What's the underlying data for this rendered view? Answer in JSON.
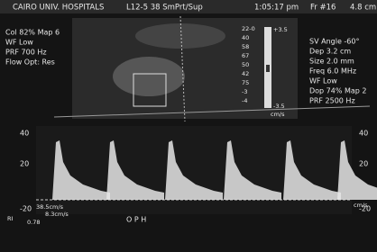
{
  "header": {
    "site": "CAIRO UNIV. HOSPITALS",
    "probe": "L12-5 38 SmPrt/Sup",
    "time": "1:05:17 pm",
    "frame": "Fr #16",
    "depth": "4.8 cm"
  },
  "color_settings": [
    "Col 82%  Map 6",
    "WF Low",
    "PRF 700   Hz",
    "Flow Opt: Res"
  ],
  "color_bar": {
    "top": "+3.5",
    "bottom": "-3.5",
    "unit": "cm/s",
    "scale": [
      "22-0",
      "40",
      "58",
      "67",
      "50",
      "42",
      "75",
      "-3",
      "-4"
    ]
  },
  "doppler_settings": [
    "SV Angle -60°",
    "Dep 3.2  cm",
    "Size 2.0  mm",
    "Freq 6.0  MHz",
    "WF Low",
    "Dop 74%  Map 2",
    "PRF 2500  Hz"
  ],
  "spectrum": {
    "left_ticks": [
      "40",
      "20",
      "-20"
    ],
    "right_ticks": [
      "40",
      "20",
      "-20"
    ],
    "unit": "cm/s",
    "vessel": "O P H"
  },
  "measurements": {
    "psv": "38.5cm/s",
    "edv": "8.3cm/s",
    "ri_label": "RI",
    "ri_value": "0.78"
  }
}
